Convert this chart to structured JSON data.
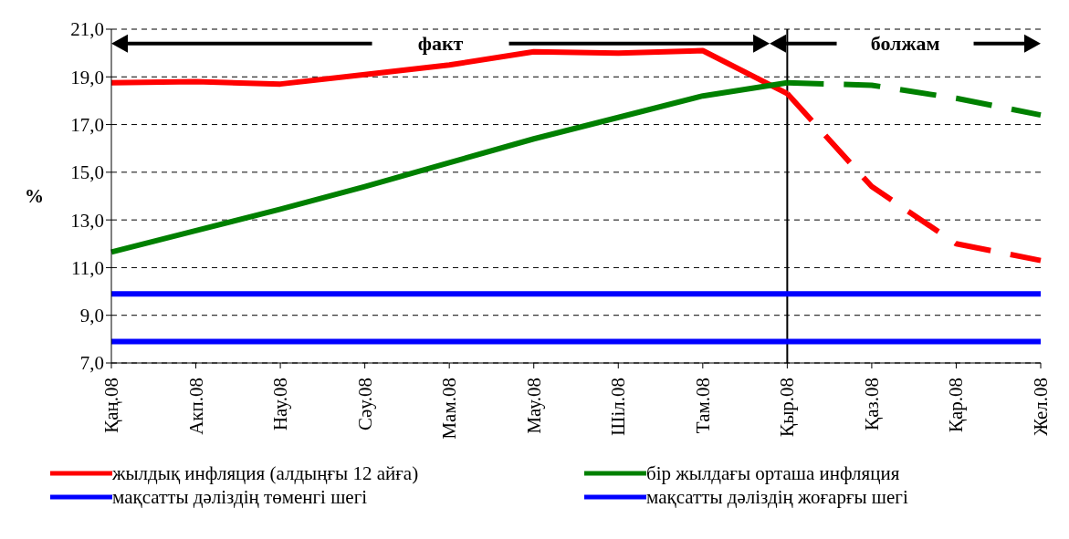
{
  "chart_data": {
    "type": "line",
    "ylabel": "%",
    "categories": [
      "Қаң.08",
      "Акп.08",
      "Нау.08",
      "Сәу.08",
      "Мам.08",
      "Мау.08",
      "Шіл.08",
      "Там.08",
      "Қыр.08",
      "Қаз.08",
      "Қар.08",
      "Жел.08"
    ],
    "series": [
      {
        "name": "жылдық инфляция (алдыңғы 12 айға)",
        "color": "#ff0000",
        "values": [
          18.75,
          18.8,
          18.7,
          19.1,
          19.5,
          20.05,
          20.0,
          20.1,
          18.3,
          null,
          null,
          null
        ]
      },
      {
        "name": "бір жылдағы орташа инфляция",
        "color": "#008000",
        "values": [
          11.65,
          12.55,
          13.45,
          14.4,
          15.4,
          16.4,
          17.3,
          18.2,
          18.75,
          null,
          null,
          null
        ]
      },
      {
        "name": "мақсатты дәліздің төменгі шегі",
        "color": "#0000ff",
        "values": [
          7.9,
          7.9,
          7.9,
          7.9,
          7.9,
          7.9,
          7.9,
          7.9,
          7.9,
          7.9,
          7.9,
          7.9
        ]
      },
      {
        "name": "мақсатты дәліздің жоғарғы шегі",
        "color": "#0000ff",
        "values": [
          9.9,
          9.9,
          9.9,
          9.9,
          9.9,
          9.9,
          9.9,
          9.9,
          9.9,
          9.9,
          9.9,
          9.9
        ]
      },
      {
        "color": "#ff0000",
        "line_style": "dashed",
        "values": [
          null,
          null,
          null,
          null,
          null,
          null,
          null,
          null,
          18.3,
          14.4,
          12.0,
          11.3
        ]
      },
      {
        "color": "#008000",
        "line_style": "dashed",
        "values": [
          null,
          null,
          null,
          null,
          null,
          null,
          null,
          null,
          18.75,
          18.65,
          18.1,
          17.4
        ]
      }
    ],
    "ylim": [
      7,
      21
    ],
    "yticks": [
      {
        "value": 7,
        "label": "7,0"
      },
      {
        "value": 9,
        "label": "9,0"
      },
      {
        "value": 11,
        "label": "11,0"
      },
      {
        "value": 13,
        "label": "13,0"
      },
      {
        "value": 15,
        "label": "15,0"
      },
      {
        "value": 17,
        "label": "17,0"
      },
      {
        "value": 19,
        "label": "19,0"
      },
      {
        "value": 21,
        "label": "21,0"
      }
    ],
    "grid": "y",
    "legend": "bottom",
    "line_style": "solid",
    "ref_lines": [
      {
        "axis": "x",
        "value": "Қыр.08",
        "color": "#000000"
      }
    ],
    "annotations": [
      "факт",
      "болжам"
    ]
  }
}
